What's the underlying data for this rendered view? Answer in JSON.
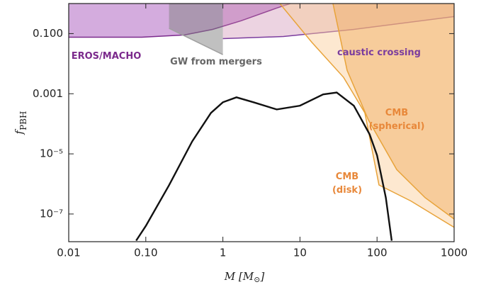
{
  "chart_data": {
    "type": "line",
    "x_label": {
      "main": "M [M",
      "sub": "⊙",
      "end": "]"
    },
    "y_label": {
      "main": "f",
      "sub": "PBH"
    },
    "xscale": "log",
    "yscale": "log",
    "xlim": [
      0.01,
      1000
    ],
    "ylim": [
      1.2e-08,
      1
    ],
    "xticks": [
      0.01,
      {
        "value": 0.1,
        "label": "0.10"
      },
      1,
      10,
      100,
      1000
    ],
    "yticks": [
      {
        "value": 0.1,
        "label": "0.100"
      },
      {
        "value": 0.001,
        "label": "0.001"
      },
      {
        "value": 1e-05,
        "label": "10⁻⁵"
      },
      {
        "value": 1e-07,
        "label": "10⁻⁷"
      }
    ],
    "series": [
      {
        "name": "EROS/MACHO",
        "color": "#7b2a8c",
        "fill": "rgba(170,90,190,0.5)",
        "label_color": "#7b2a8c",
        "x": [
          0.01,
          0.0887,
          0.315,
          0.735,
          1.71,
          4.93,
          7.5
        ],
        "values": [
          0.076,
          0.076,
          0.09,
          0.138,
          0.265,
          0.7,
          1
        ]
      },
      {
        "name": "caustic crossing",
        "color": "#7b3d9e",
        "fill": "rgba(200,130,170,0.35)",
        "label_color": "#7b3d9e",
        "x": [
          1,
          6.1,
          50,
          1000
        ],
        "values": [
          0.068,
          0.08,
          0.138,
          0.37
        ]
      },
      {
        "name": "GW from mergers",
        "color": "#a0a0a0",
        "fill": "rgba(130,130,130,0.5)",
        "label_color": "#666666",
        "x": [
          0.2,
          1
        ],
        "values": [
          0.15,
          0.02
        ]
      },
      {
        "name": "CMB (disk)",
        "color": "#e8a33a",
        "fill": "rgba(250,205,150,0.45)",
        "label_color": "#e8883a",
        "x": [
          5.48,
          14.2,
          36.8,
          69.5,
          106,
          275,
          1000
        ],
        "values": [
          1,
          0.052,
          0.0035,
          0.00023,
          9.2e-07,
          2.7e-07,
          3.6e-08
        ]
      },
      {
        "name": "CMB (spherical)",
        "color": "#e8a33a",
        "fill": "rgba(240,170,90,0.45)",
        "label_color": "#e8883a",
        "x": [
          26.8,
          40.9,
          77.2,
          180,
          420,
          1000
        ],
        "values": [
          1,
          0.006,
          0.000135,
          3e-06,
          3.5e-07,
          6.8e-08
        ]
      },
      {
        "color": "#111111",
        "x": [
          0.075,
          0.1,
          0.2,
          0.4,
          0.7,
          1,
          1.5,
          2.5,
          5,
          10,
          20,
          30,
          50,
          80,
          100,
          130,
          155
        ],
        "values": [
          1.3e-08,
          4e-08,
          9e-07,
          2.6e-05,
          0.00023,
          0.00052,
          0.00076,
          0.00052,
          0.0003,
          0.0004,
          0.00095,
          0.0011,
          0.0004,
          4.5e-05,
          9e-06,
          3.5e-07,
          1.3e-08
        ]
      }
    ]
  }
}
